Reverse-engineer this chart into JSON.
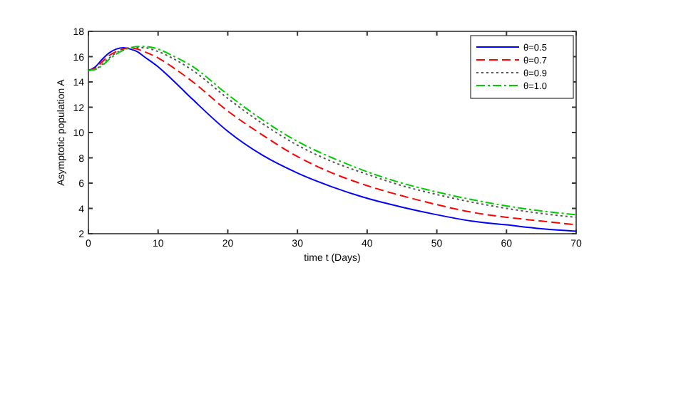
{
  "chart_data": {
    "type": "line",
    "xlabel": "time t (Days)",
    "ylabel": "Asymptotic population A",
    "x": [
      0,
      1,
      2,
      3,
      4,
      5,
      6,
      7,
      8,
      10,
      12,
      15,
      20,
      25,
      30,
      35,
      40,
      45,
      50,
      55,
      60,
      65,
      70
    ],
    "series": [
      {
        "name": "θ=0.5",
        "color": "#0000ff",
        "line_style": "solid",
        "values": [
          14.9,
          15.2,
          15.8,
          16.3,
          16.6,
          16.7,
          16.6,
          16.4,
          16.0,
          15.2,
          14.2,
          12.6,
          10.1,
          8.2,
          6.8,
          5.7,
          4.8,
          4.1,
          3.5,
          3.0,
          2.7,
          2.4,
          2.2
        ]
      },
      {
        "name": "θ=0.7",
        "color": "#ff0000",
        "line_style": "dashed",
        "values": [
          14.9,
          15.1,
          15.6,
          16.1,
          16.4,
          16.6,
          16.7,
          16.6,
          16.4,
          15.9,
          15.2,
          14.0,
          11.7,
          9.8,
          8.1,
          6.8,
          5.8,
          5.0,
          4.3,
          3.7,
          3.3,
          3.0,
          2.7
        ]
      },
      {
        "name": "θ=0.9",
        "color": "#555555",
        "line_style": "dotted",
        "values": [
          14.9,
          15.0,
          15.4,
          15.9,
          16.3,
          16.5,
          16.7,
          16.7,
          16.7,
          16.4,
          15.9,
          14.9,
          12.7,
          10.7,
          9.0,
          7.7,
          6.7,
          5.8,
          5.1,
          4.5,
          4.0,
          3.6,
          3.3
        ]
      },
      {
        "name": "θ=1.0",
        "color": "#00cc00",
        "line_style": "dashdot",
        "values": [
          14.9,
          15.0,
          15.3,
          15.8,
          16.2,
          16.5,
          16.7,
          16.8,
          16.8,
          16.6,
          16.1,
          15.2,
          13.0,
          11.0,
          9.3,
          8.0,
          6.9,
          6.0,
          5.3,
          4.7,
          4.2,
          3.8,
          3.5
        ]
      }
    ],
    "xlim": [
      0,
      70
    ],
    "xticks": [
      0,
      10,
      20,
      30,
      40,
      50,
      60,
      70
    ],
    "ylim": [
      2,
      18
    ],
    "yticks": [
      2,
      4,
      6,
      8,
      10,
      12,
      14,
      16,
      18
    ],
    "legend": "top right",
    "grid": false,
    "marker": "none"
  }
}
